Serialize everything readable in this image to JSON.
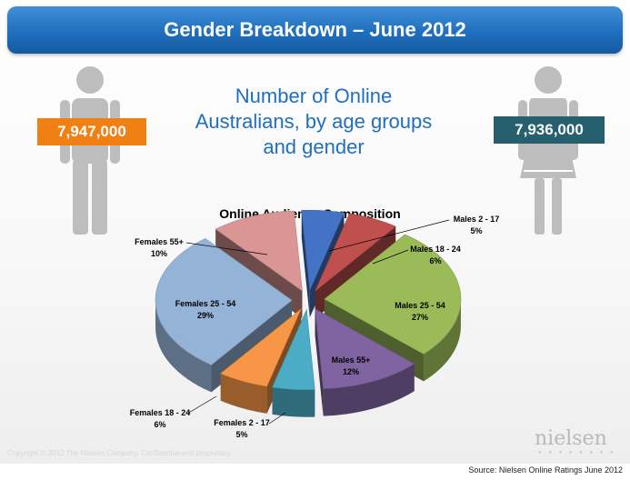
{
  "header": {
    "title": "Gender Breakdown – June 2012"
  },
  "subtitle": "Number of Online Australians, by age groups and gender",
  "counts": {
    "male": "7,947,000",
    "female": "7,936,000"
  },
  "icons": {
    "male": "male-person-icon",
    "female": "female-person-icon"
  },
  "chart_data": {
    "type": "pie",
    "title": "Online Audience Composition",
    "unit": "%",
    "slices": [
      {
        "label": "Males 2 - 17",
        "value": 5,
        "color": "#4472c4"
      },
      {
        "label": "Males 18 - 24",
        "value": 6,
        "color": "#c0504d"
      },
      {
        "label": "Males 25 - 54",
        "value": 27,
        "color": "#9bbb59"
      },
      {
        "label": "Males 55+",
        "value": 12,
        "color": "#8064a2"
      },
      {
        "label": "Females 2 - 17",
        "value": 5,
        "color": "#4bacc6"
      },
      {
        "label": "Females 18 - 24",
        "value": 6,
        "color": "#f79646"
      },
      {
        "label": "Females 25 - 54",
        "value": 29,
        "color": "#95b3d7"
      },
      {
        "label": "Females 55+",
        "value": 10,
        "color": "#d99694"
      }
    ]
  },
  "footer": {
    "copyright": "Copyright © 2012 The Nielsen Company. Confidential and proprietary.",
    "logo": "nielsen",
    "source": "Source: Nielsen Online Ratings June 2012"
  }
}
